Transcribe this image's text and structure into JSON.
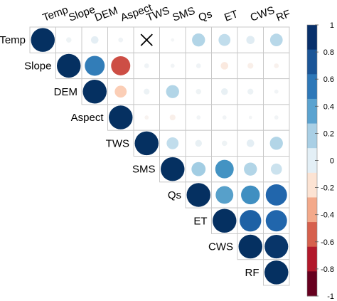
{
  "chart_data": {
    "type": "heatmap",
    "variables": [
      "Temp",
      "Slope",
      "DEM",
      "Aspect",
      "TWS",
      "SMS",
      "Qs",
      "ET",
      "CWS",
      "RF"
    ],
    "matrix": [
      [
        1.0,
        0.05,
        0.1,
        0.04,
        null,
        0.02,
        0.3,
        0.25,
        0.12,
        0.28
      ],
      [
        0.05,
        1.0,
        0.7,
        -0.65,
        0.04,
        0.03,
        0.04,
        -0.1,
        -0.06,
        -0.04
      ],
      [
        0.1,
        0.7,
        1.0,
        -0.25,
        0.06,
        0.3,
        0.05,
        0.08,
        0.06,
        0.03
      ],
      [
        0.04,
        -0.65,
        -0.25,
        1.0,
        -0.03,
        -0.06,
        0.03,
        0.03,
        0.02,
        0.03
      ],
      [
        null,
        0.04,
        0.06,
        -0.03,
        1.0,
        0.25,
        0.08,
        0.05,
        0.1,
        0.3
      ],
      [
        0.02,
        0.03,
        0.3,
        -0.06,
        0.25,
        1.0,
        0.35,
        0.6,
        0.3,
        0.22
      ],
      [
        0.3,
        0.04,
        0.05,
        0.03,
        0.08,
        0.35,
        1.0,
        0.55,
        0.62,
        0.8
      ],
      [
        0.25,
        -0.1,
        0.08,
        0.03,
        0.05,
        0.6,
        0.55,
        1.0,
        0.82,
        0.8
      ],
      [
        0.12,
        -0.06,
        0.06,
        0.02,
        0.1,
        0.3,
        0.62,
        0.82,
        1.0,
        0.98
      ],
      [
        0.28,
        -0.04,
        0.03,
        0.03,
        0.3,
        0.22,
        0.8,
        0.8,
        0.98,
        1.0
      ]
    ],
    "insignificant_marker": "X",
    "legend": {
      "position": "right",
      "range": [
        -1,
        1
      ],
      "ticks": [
        "1",
        "0.8",
        "0.6",
        "0.4",
        "0.2",
        "0",
        "-0.2",
        "-0.4",
        "-0.6",
        "-0.8",
        "-1"
      ],
      "colors": [
        "#08306B",
        "#1B5597",
        "#2E78B8",
        "#5BA3D0",
        "#A9CFE5",
        "#E3EFF6",
        "#FCE3D3",
        "#F3A98A",
        "#D6604D",
        "#B2182B",
        "#67001F"
      ]
    }
  }
}
